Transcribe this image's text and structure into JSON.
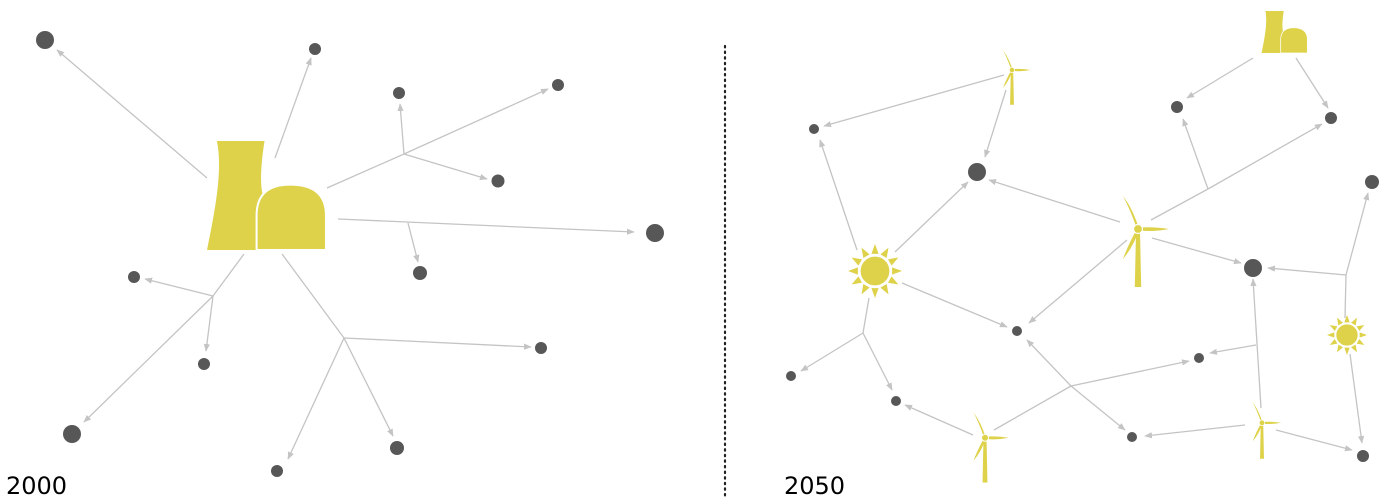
{
  "labels": {
    "left_year": "2000",
    "right_year": "2050"
  },
  "colors": {
    "generator": "#ded24a",
    "consumer_node": "#575757",
    "connection": "#c4c4c4",
    "divider": "#222222"
  },
  "icons": {
    "power_plant": "nuclear-power-plant-icon",
    "wind": "wind-turbine-icon",
    "solar": "sun-icon",
    "consumer": "consumer-node-icon"
  },
  "panels": [
    {
      "id": "centralized",
      "year": "2000",
      "generators": [
        "power-plant"
      ]
    },
    {
      "id": "decentralized",
      "year": "2050",
      "generators": [
        "power-plant",
        "wind-turbine",
        "wind-turbine",
        "wind-turbine",
        "wind-turbine",
        "sun",
        "sun"
      ]
    }
  ]
}
